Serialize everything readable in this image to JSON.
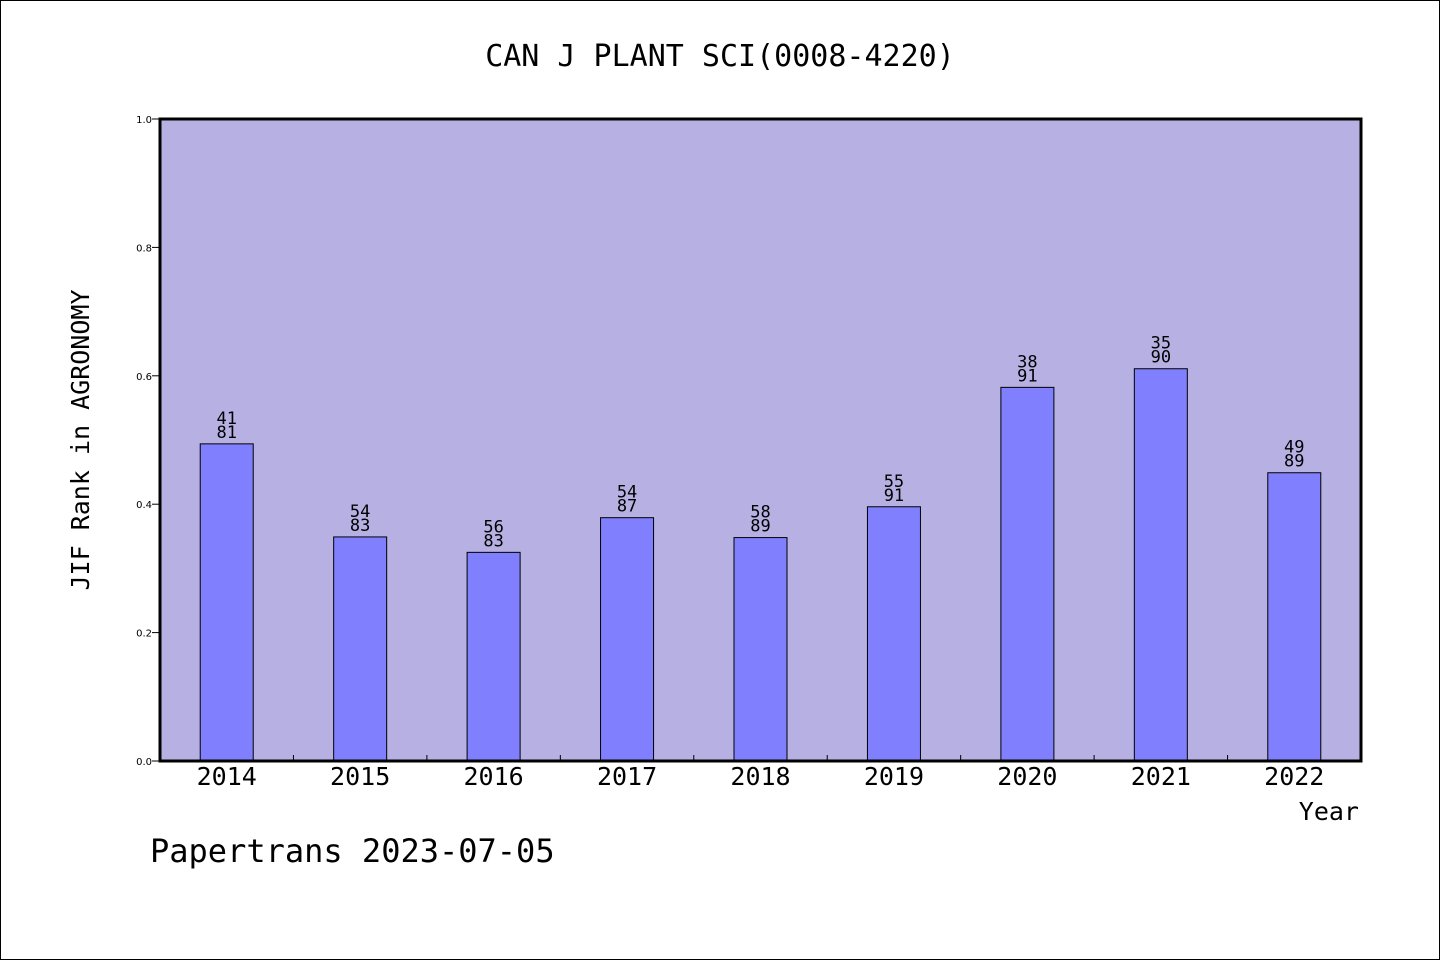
{
  "chart_data": {
    "type": "bar",
    "title": "CAN J PLANT SCI(0008-4220)",
    "xlabel": "Year",
    "ylabel": "JIF Rank in AGRONOMY",
    "ylim": [
      0,
      1.0
    ],
    "yticks": [
      "0.0",
      "0.2",
      "0.4",
      "0.6",
      "0.8",
      "1.0"
    ],
    "grid": false,
    "categories": [
      "2014",
      "2015",
      "2016",
      "2017",
      "2018",
      "2019",
      "2020",
      "2021",
      "2022"
    ],
    "values": [
      0.494,
      0.349,
      0.325,
      0.379,
      0.348,
      0.396,
      0.582,
      0.611,
      0.449
    ],
    "rank_labels": [
      {
        "rank": "41",
        "total": "81"
      },
      {
        "rank": "54",
        "total": "83"
      },
      {
        "rank": "56",
        "total": "83"
      },
      {
        "rank": "54",
        "total": "87"
      },
      {
        "rank": "58",
        "total": "89"
      },
      {
        "rank": "55",
        "total": "91"
      },
      {
        "rank": "38",
        "total": "91"
      },
      {
        "rank": "35",
        "total": "90"
      },
      {
        "rank": "49",
        "total": "89"
      }
    ],
    "colors": {
      "plot_background": "#b6b0e3",
      "bar_fill": "#8080ff",
      "bar_stroke": "#000000"
    }
  },
  "footer": {
    "text": "Papertrans 2023-07-05"
  }
}
